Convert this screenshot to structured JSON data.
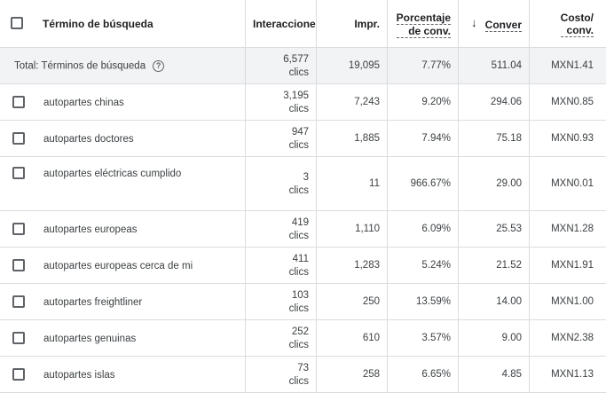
{
  "header": {
    "term": "Término de búsqueda",
    "interactions": "Interaccione",
    "impr": "Impr.",
    "conv_rate_line1": "Porcentaje",
    "conv_rate_line2": "de conv.",
    "conversions": "Conver",
    "cost_line1": "Costo/",
    "cost_line2": "conv."
  },
  "total": {
    "label": "Total: Términos de búsqueda",
    "interactions": "6,577",
    "interactions_unit": "clics",
    "impr": "19,095",
    "conv_rate": "7.77%",
    "conversions": "511.04",
    "cost": "MXN1.41"
  },
  "rows": [
    {
      "term": "autopartes chinas",
      "interactions": "3,195",
      "unit": "clics",
      "impr": "7,243",
      "conv_rate": "9.20%",
      "conversions": "294.06",
      "cost": "MXN0.85"
    },
    {
      "term": "autopartes doctores",
      "interactions": "947",
      "unit": "clics",
      "impr": "1,885",
      "conv_rate": "7.94%",
      "conversions": "75.18",
      "cost": "MXN0.93"
    },
    {
      "term": "autopartes eléctricas cumplido",
      "interactions": "3",
      "unit": "clics",
      "impr": "11",
      "conv_rate": "966.67%",
      "conversions": "29.00",
      "cost": "MXN0.01"
    },
    {
      "term": "autopartes europeas",
      "interactions": "419",
      "unit": "clics",
      "impr": "1,110",
      "conv_rate": "6.09%",
      "conversions": "25.53",
      "cost": "MXN1.28"
    },
    {
      "term": "autopartes europeas cerca de mi",
      "interactions": "411",
      "unit": "clics",
      "impr": "1,283",
      "conv_rate": "5.24%",
      "conversions": "21.52",
      "cost": "MXN1.91"
    },
    {
      "term": "autopartes freightliner",
      "interactions": "103",
      "unit": "clics",
      "impr": "250",
      "conv_rate": "13.59%",
      "conversions": "14.00",
      "cost": "MXN1.00"
    },
    {
      "term": "autopartes genuinas",
      "interactions": "252",
      "unit": "clics",
      "impr": "610",
      "conv_rate": "3.57%",
      "conversions": "9.00",
      "cost": "MXN2.38"
    },
    {
      "term": "autopartes islas",
      "interactions": "73",
      "unit": "clics",
      "impr": "258",
      "conv_rate": "6.65%",
      "conversions": "4.85",
      "cost": "MXN1.13"
    }
  ]
}
